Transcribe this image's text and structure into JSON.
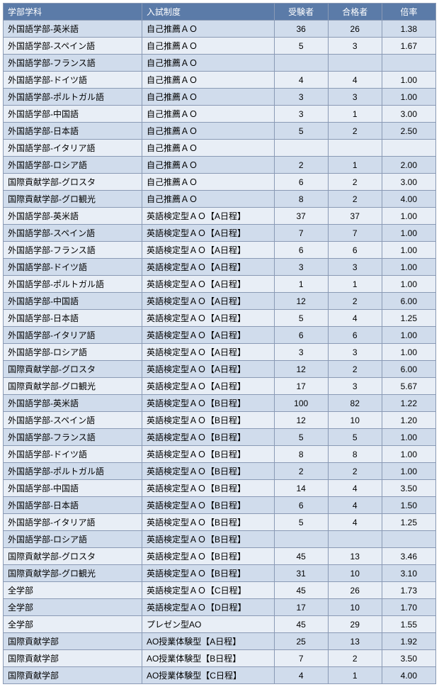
{
  "table": {
    "columns": [
      "学部学科",
      "入試制度",
      "受験者",
      "合格者",
      "倍率"
    ],
    "rows": [
      [
        "外国語学部-英米語",
        "自己推薦ＡＯ",
        "36",
        "26",
        "1.38"
      ],
      [
        "外国語学部-スペイン語",
        "自己推薦ＡＯ",
        "5",
        "3",
        "1.67"
      ],
      [
        "外国語学部-フランス語",
        "自己推薦ＡＯ",
        "",
        "",
        ""
      ],
      [
        "外国語学部-ドイツ語",
        "自己推薦ＡＯ",
        "4",
        "4",
        "1.00"
      ],
      [
        "外国語学部-ポルトガル語",
        "自己推薦ＡＯ",
        "3",
        "3",
        "1.00"
      ],
      [
        "外国語学部-中国語",
        "自己推薦ＡＯ",
        "3",
        "1",
        "3.00"
      ],
      [
        "外国語学部-日本語",
        "自己推薦ＡＯ",
        "5",
        "2",
        "2.50"
      ],
      [
        "外国語学部-イタリア語",
        "自己推薦ＡＯ",
        "",
        "",
        ""
      ],
      [
        "外国語学部-ロシア語",
        "自己推薦ＡＯ",
        "2",
        "1",
        "2.00"
      ],
      [
        "国際貢献学部-グロスタ",
        "自己推薦ＡＯ",
        "6",
        "2",
        "3.00"
      ],
      [
        "国際貢献学部-グロ観光",
        "自己推薦ＡＯ",
        "8",
        "2",
        "4.00"
      ],
      [
        "外国語学部-英米語",
        "英語検定型ＡＯ【A日程】",
        "37",
        "37",
        "1.00"
      ],
      [
        "外国語学部-スペイン語",
        "英語検定型ＡＯ【A日程】",
        "7",
        "7",
        "1.00"
      ],
      [
        "外国語学部-フランス語",
        "英語検定型ＡＯ【A日程】",
        "6",
        "6",
        "1.00"
      ],
      [
        "外国語学部-ドイツ語",
        "英語検定型ＡＯ【A日程】",
        "3",
        "3",
        "1.00"
      ],
      [
        "外国語学部-ポルトガル語",
        "英語検定型ＡＯ【A日程】",
        "1",
        "1",
        "1.00"
      ],
      [
        "外国語学部-中国語",
        "英語検定型ＡＯ【A日程】",
        "12",
        "2",
        "6.00"
      ],
      [
        "外国語学部-日本語",
        "英語検定型ＡＯ【A日程】",
        "5",
        "4",
        "1.25"
      ],
      [
        "外国語学部-イタリア語",
        "英語検定型ＡＯ【A日程】",
        "6",
        "6",
        "1.00"
      ],
      [
        "外国語学部-ロシア語",
        "英語検定型ＡＯ【A日程】",
        "3",
        "3",
        "1.00"
      ],
      [
        "国際貢献学部-グロスタ",
        "英語検定型ＡＯ【A日程】",
        "12",
        "2",
        "6.00"
      ],
      [
        "国際貢献学部-グロ観光",
        "英語検定型ＡＯ【A日程】",
        "17",
        "3",
        "5.67"
      ],
      [
        "外国語学部-英米語",
        "英語検定型ＡＯ【B日程】",
        "100",
        "82",
        "1.22"
      ],
      [
        "外国語学部-スペイン語",
        "英語検定型ＡＯ【B日程】",
        "12",
        "10",
        "1.20"
      ],
      [
        "外国語学部-フランス語",
        "英語検定型ＡＯ【B日程】",
        "5",
        "5",
        "1.00"
      ],
      [
        "外国語学部-ドイツ語",
        "英語検定型ＡＯ【B日程】",
        "8",
        "8",
        "1.00"
      ],
      [
        "外国語学部-ポルトガル語",
        "英語検定型ＡＯ【B日程】",
        "2",
        "2",
        "1.00"
      ],
      [
        "外国語学部-中国語",
        "英語検定型ＡＯ【B日程】",
        "14",
        "4",
        "3.50"
      ],
      [
        "外国語学部-日本語",
        "英語検定型ＡＯ【B日程】",
        "6",
        "4",
        "1.50"
      ],
      [
        "外国語学部-イタリア語",
        "英語検定型ＡＯ【B日程】",
        "5",
        "4",
        "1.25"
      ],
      [
        "外国語学部-ロシア語",
        "英語検定型ＡＯ【B日程】",
        "",
        "",
        ""
      ],
      [
        "国際貢献学部-グロスタ",
        "英語検定型ＡＯ【B日程】",
        "45",
        "13",
        "3.46"
      ],
      [
        "国際貢献学部-グロ観光",
        "英語検定型ＡＯ【B日程】",
        "31",
        "10",
        "3.10"
      ],
      [
        "全学部",
        "英語検定型ＡＯ【C日程】",
        "45",
        "26",
        "1.73"
      ],
      [
        "全学部",
        "英語検定型ＡＯ【D日程】",
        "17",
        "10",
        "1.70"
      ],
      [
        "全学部",
        "プレゼン型AO",
        "45",
        "29",
        "1.55"
      ],
      [
        "国際貢献学部",
        "AO授業体験型【A日程】",
        "25",
        "13",
        "1.92"
      ],
      [
        "国際貢献学部",
        "AO授業体験型【B日程】",
        "7",
        "2",
        "3.50"
      ],
      [
        "国際貢献学部",
        "AO授業体験型【C日程】",
        "4",
        "1",
        "4.00"
      ]
    ]
  }
}
